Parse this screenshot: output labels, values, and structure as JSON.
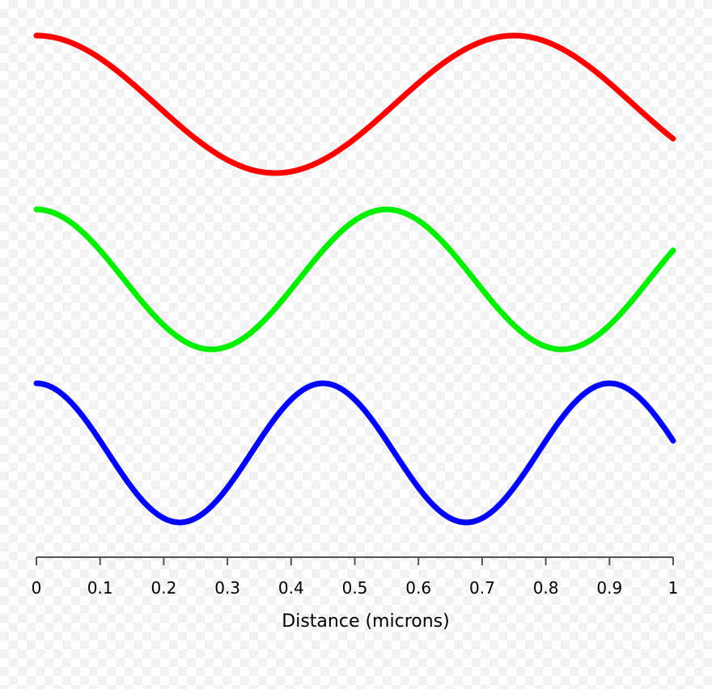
{
  "chart_data": {
    "type": "line",
    "xlabel": "Distance (microns)",
    "xlim": [
      0,
      1
    ],
    "x_ticks": [
      "0",
      "0.1",
      "0.2",
      "0.3",
      "0.4",
      "0.5",
      "0.6",
      "0.7",
      "0.8",
      "0.9",
      "1"
    ],
    "x_tick_values": [
      0,
      0.1,
      0.2,
      0.3,
      0.4,
      0.5,
      0.6,
      0.7,
      0.8,
      0.9,
      1
    ],
    "grid": false,
    "legend": "none",
    "series": [
      {
        "color": "#ff0000",
        "wavelength_microns": 0.75,
        "phase": "cosine",
        "x_end": 1
      },
      {
        "color": "#00ee00",
        "wavelength_microns": 0.55,
        "phase": "cosine",
        "x_end": 1
      },
      {
        "color": "#0000ff",
        "wavelength_microns": 0.45,
        "phase": "cosine",
        "x_end": 1
      }
    ]
  }
}
